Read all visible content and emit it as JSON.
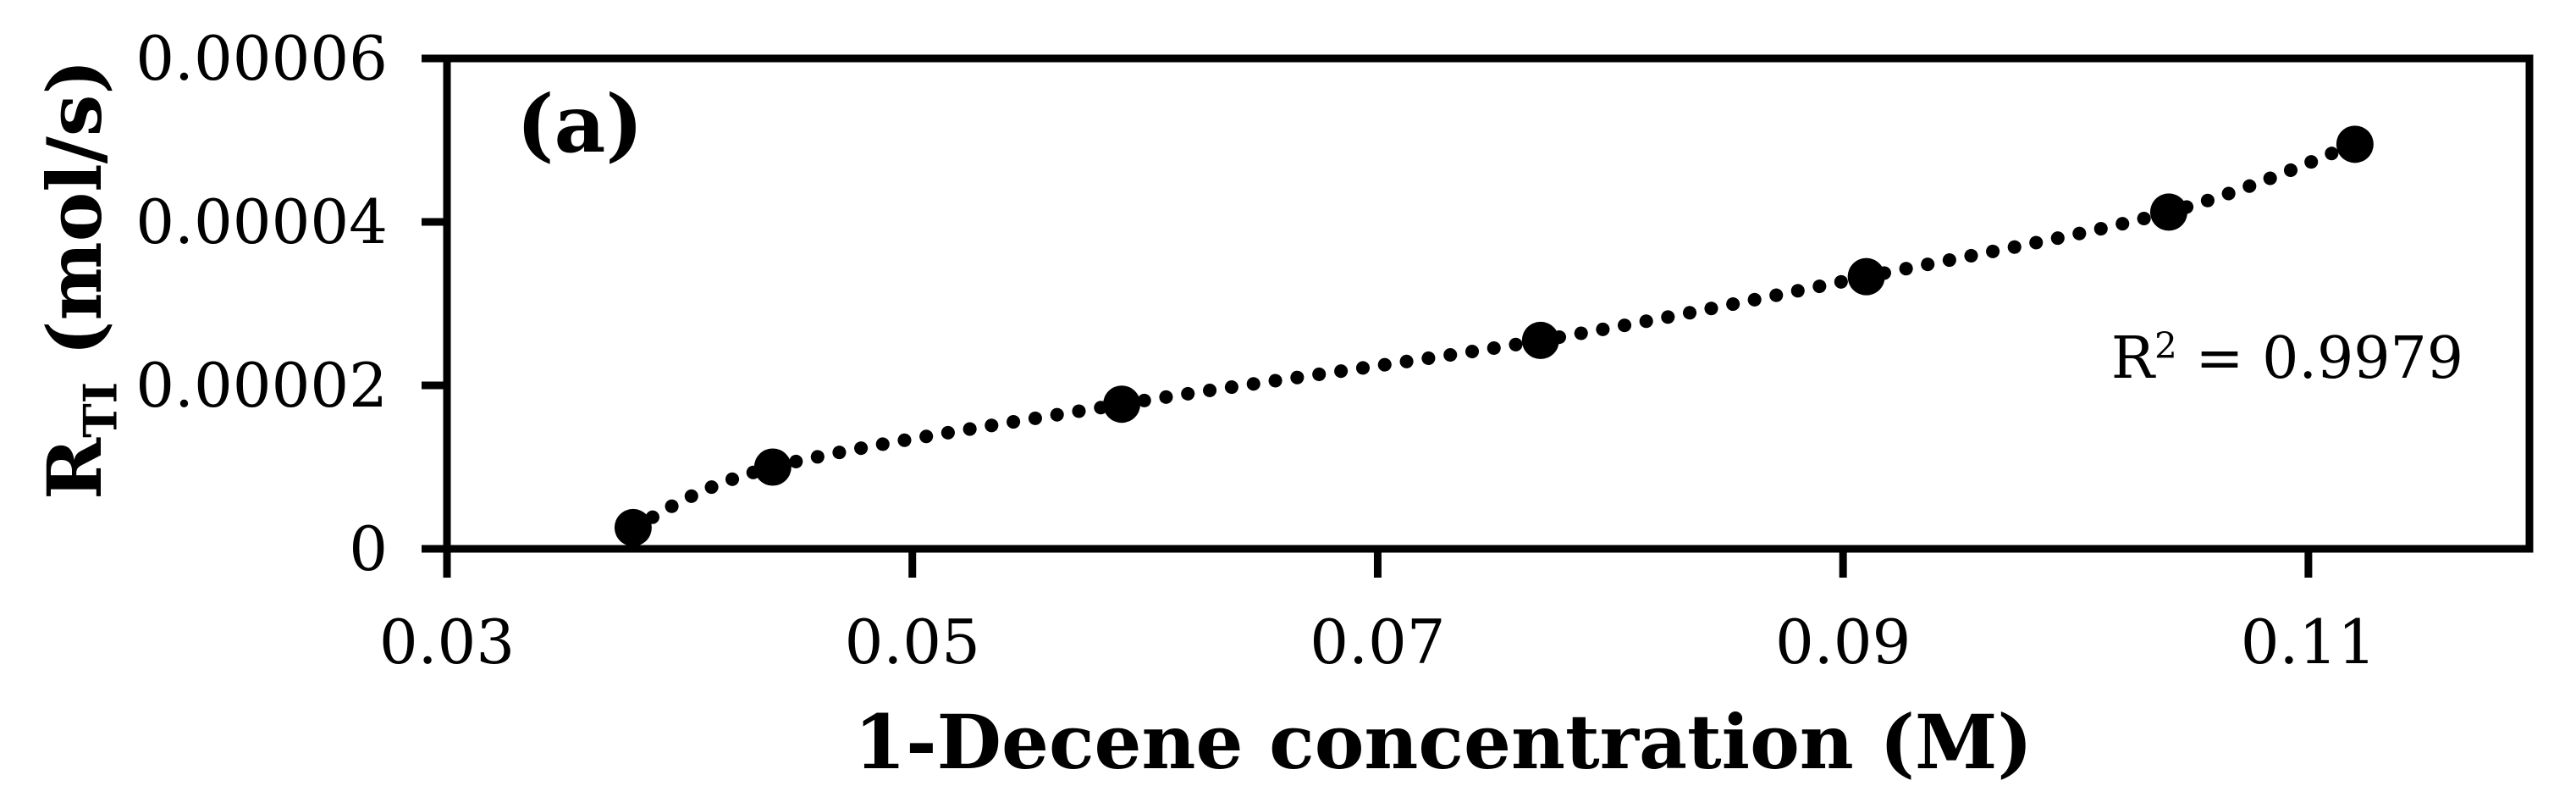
{
  "figure": {
    "panel_label": "(a)",
    "background_color": "#ffffff",
    "ink_color": "#000000"
  },
  "annotation": {
    "r2_prefix": "R",
    "r2_sup": "2",
    "r2_suffix": " = 0.9979"
  },
  "axis_titles": {
    "x": "1-Decene concentration (M)",
    "y_main": "R",
    "y_sub": "TI",
    "y_units": " (mol/s)"
  },
  "chart_data": {
    "type": "scatter",
    "title": "",
    "xlabel": "1-Decene concentration (M)",
    "ylabel": "R_TI (mol/s)",
    "x": [
      0.038,
      0.044,
      0.059,
      0.077,
      0.091,
      0.104,
      0.112
    ],
    "y": [
      2.6e-06,
      1e-05,
      1.77e-05,
      2.55e-05,
      3.33e-05,
      4.12e-05,
      4.95e-05
    ],
    "trendline": {
      "style": "dotted",
      "shape": "smooth-through-points",
      "r_squared": 0.9979
    },
    "xlim": [
      0.03,
      0.1195
    ],
    "ylim": [
      0,
      6e-05
    ],
    "x_ticks": [
      0.03,
      0.05,
      0.07,
      0.09,
      0.11
    ],
    "x_tick_labels": [
      "0.03",
      "0.05",
      "0.07",
      "0.09",
      "0.11"
    ],
    "y_ticks": [
      0,
      2e-05,
      4e-05,
      6e-05
    ],
    "y_tick_labels": [
      "0",
      "0.00002",
      "0.00004",
      "0.00006"
    ],
    "grid": false,
    "legend": false,
    "marker_color": "#000000",
    "line_color": "#000000"
  }
}
